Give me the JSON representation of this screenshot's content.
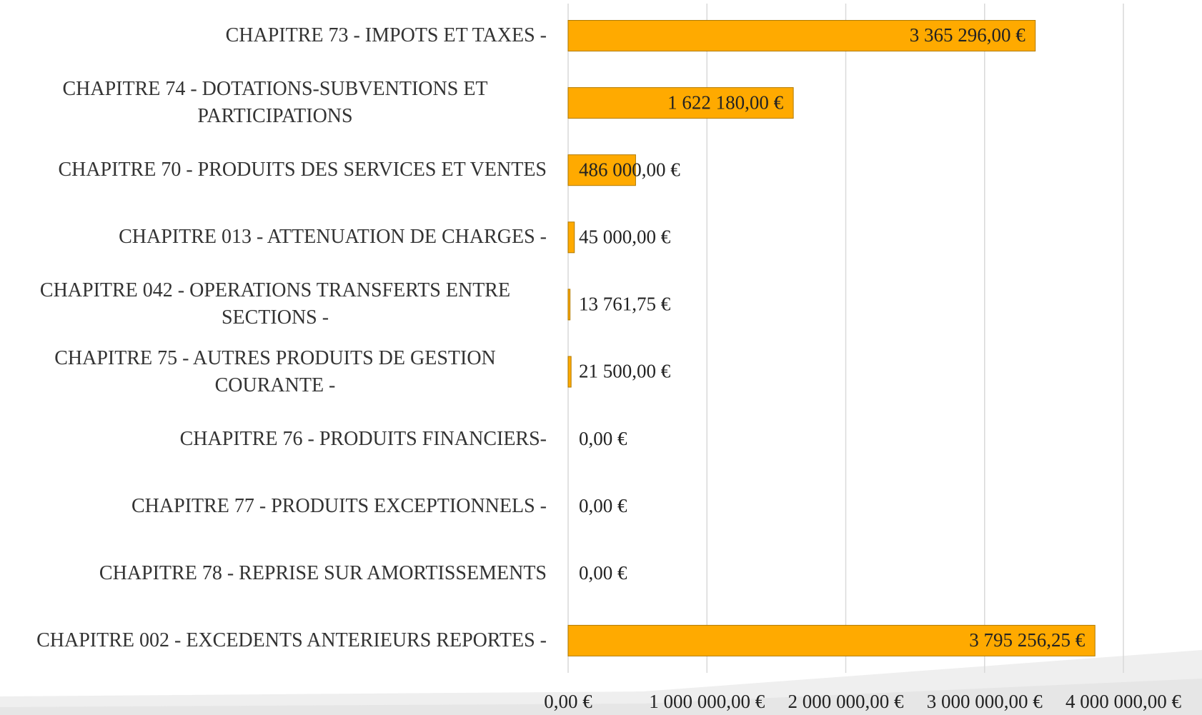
{
  "chart_data": {
    "type": "bar",
    "orientation": "horizontal",
    "color": "#FFAA00",
    "categories": [
      "CHAPITRE 73 - IMPOTS ET TAXES -",
      "CHAPITRE 74 - DOTATIONS-SUBVENTIONS ET PARTICIPATIONS",
      "CHAPITRE 70 - PRODUITS DES SERVICES ET VENTES",
      "CHAPITRE 013 - ATTENUATION DE CHARGES -",
      "CHAPITRE 042 - OPERATIONS TRANSFERTS ENTRE SECTIONS -",
      "CHAPITRE 75 - AUTRES PRODUITS DE GESTION COURANTE -",
      "CHAPITRE 76 - PRODUITS FINANCIERS-",
      "CHAPITRE 77 - PRODUITS EXCEPTIONNELS -",
      "CHAPITRE 78 - REPRISE SUR AMORTISSEMENTS",
      "CHAPITRE 002 - EXCEDENTS ANTERIEURS REPORTES -"
    ],
    "values": [
      3365296,
      1622180,
      486000,
      45000,
      13761.75,
      21500,
      0,
      0,
      0,
      3795256.25
    ],
    "value_labels": [
      "3 365 296,00 €",
      "1 622 180,00 €",
      "486 000,00 €",
      "45 000,00 €",
      "13 761,75 €",
      "21 500,00 €",
      "0,00 €",
      "0,00 €",
      "0,00 €",
      "3 795 256,25 €"
    ],
    "xlim": [
      0,
      4000000
    ],
    "xticks": [
      {
        "value": 0,
        "label": "0,00 €"
      },
      {
        "value": 1000000,
        "label": "1 000 000,00 €"
      },
      {
        "value": 2000000,
        "label": "2 000 000,00 €"
      },
      {
        "value": 3000000,
        "label": "3 000 000,00 €"
      },
      {
        "value": 4000000,
        "label": "4 000 000,00 €"
      }
    ],
    "grid": true
  }
}
